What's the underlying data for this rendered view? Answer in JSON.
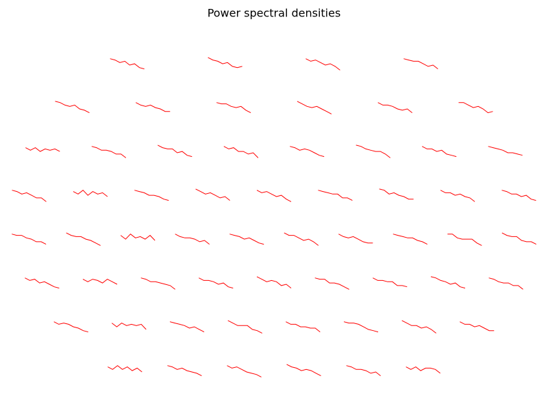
{
  "chart_data": {
    "type": "psd-topo",
    "title": "Power spectral densities",
    "color": "#ff0000",
    "ylim": [
      -12,
      2
    ],
    "series": [
      {
        "values": [
          0,
          -1,
          -3,
          -2,
          -5,
          -4,
          -7,
          -8
        ]
      },
      {
        "values": [
          1,
          -1,
          -2,
          -4,
          -3,
          -6,
          -7,
          -6
        ]
      },
      {
        "values": [
          0,
          -2,
          -1,
          -3,
          -5,
          -4,
          -6,
          -9
        ]
      },
      {
        "values": [
          0,
          -1,
          -2,
          -2,
          -4,
          -6,
          -5,
          -8
        ]
      },
      {
        "values": [
          1,
          0,
          -2,
          -3,
          -2,
          -5,
          -6,
          -8
        ]
      },
      {
        "values": [
          0,
          -2,
          -3,
          -2,
          -4,
          -5,
          -7,
          -7
        ]
      },
      {
        "values": [
          0,
          -1,
          -1,
          -3,
          -4,
          -3,
          -6,
          -8
        ]
      },
      {
        "values": [
          1,
          -1,
          -3,
          -4,
          -3,
          -5,
          -7,
          -9
        ]
      },
      {
        "values": [
          0,
          -2,
          -2,
          -3,
          -5,
          -6,
          -5,
          -8
        ]
      },
      {
        "values": [
          0,
          0,
          -2,
          -4,
          -3,
          -5,
          -8,
          -7
        ]
      },
      {
        "values": [
          -1,
          -3,
          -1,
          -4,
          -2,
          -3,
          -2,
          -4
        ]
      },
      {
        "values": [
          0,
          -1,
          -3,
          -3,
          -4,
          -6,
          -6,
          -9
        ]
      },
      {
        "values": [
          1,
          -1,
          -2,
          -2,
          -5,
          -4,
          -7,
          -8
        ]
      },
      {
        "values": [
          0,
          -2,
          -1,
          -4,
          -4,
          -6,
          -5,
          -9
        ]
      },
      {
        "values": [
          0,
          -1,
          -3,
          -2,
          -3,
          -5,
          -7,
          -8
        ]
      },
      {
        "values": [
          1,
          0,
          -2,
          -3,
          -4,
          -4,
          -6,
          -9
        ]
      },
      {
        "values": [
          0,
          -2,
          -2,
          -4,
          -3,
          -6,
          -7,
          -8
        ]
      },
      {
        "values": [
          0,
          -1,
          -2,
          -3,
          -5,
          -5,
          -6,
          -7
        ]
      },
      {
        "values": [
          0,
          -1,
          -3,
          -2,
          -4,
          -6,
          -6,
          -9
        ]
      },
      {
        "values": [
          -1,
          -3,
          0,
          -4,
          -1,
          -3,
          -2,
          -5
        ]
      },
      {
        "values": [
          0,
          -1,
          -2,
          -4,
          -4,
          -5,
          -7,
          -8
        ]
      },
      {
        "values": [
          1,
          -1,
          -3,
          -2,
          -4,
          -6,
          -5,
          -8
        ]
      },
      {
        "values": [
          0,
          -2,
          -1,
          -3,
          -5,
          -4,
          -7,
          -9
        ]
      },
      {
        "values": [
          0,
          -1,
          -2,
          -3,
          -3,
          -6,
          -6,
          -8
        ]
      },
      {
        "values": [
          1,
          0,
          -3,
          -2,
          -4,
          -5,
          -7,
          -7
        ]
      },
      {
        "values": [
          0,
          -2,
          -2,
          -4,
          -3,
          -5,
          -6,
          -9
        ]
      },
      {
        "values": [
          0,
          -1,
          -3,
          -3,
          -5,
          -4,
          -7,
          -8
        ]
      },
      {
        "values": [
          0,
          -1,
          -1,
          -3,
          -4,
          -6,
          -6,
          -8
        ]
      },
      {
        "values": [
          1,
          -1,
          -2,
          -2,
          -4,
          -5,
          -7,
          -9
        ]
      },
      {
        "values": [
          -1,
          -4,
          0,
          -3,
          -2,
          -4,
          -1,
          -5
        ]
      },
      {
        "values": [
          0,
          -2,
          -3,
          -3,
          -4,
          -6,
          -5,
          -8
        ]
      },
      {
        "values": [
          0,
          -1,
          -2,
          -4,
          -3,
          -5,
          -7,
          -8
        ]
      },
      {
        "values": [
          1,
          -1,
          -1,
          -3,
          -5,
          -4,
          -6,
          -9
        ]
      },
      {
        "values": [
          0,
          -2,
          -3,
          -2,
          -4,
          -6,
          -7,
          -7
        ]
      },
      {
        "values": [
          0,
          -1,
          -2,
          -3,
          -3,
          -5,
          -6,
          -8
        ]
      },
      {
        "values": [
          0,
          0,
          -3,
          -4,
          -4,
          -4,
          -7,
          -9
        ]
      },
      {
        "values": [
          1,
          -1,
          -2,
          -2,
          -5,
          -6,
          -6,
          -8
        ]
      },
      {
        "values": [
          0,
          -2,
          -1,
          -4,
          -3,
          -5,
          -7,
          -8
        ]
      },
      {
        "values": [
          -1,
          -3,
          -1,
          -2,
          -4,
          -1,
          -3,
          -5
        ]
      },
      {
        "values": [
          0,
          -1,
          -3,
          -3,
          -4,
          -5,
          -6,
          -9
        ]
      },
      {
        "values": [
          0,
          -2,
          -2,
          -3,
          -5,
          -4,
          -7,
          -8
        ]
      },
      {
        "values": [
          1,
          -1,
          -3,
          -2,
          -3,
          -6,
          -5,
          -8
        ]
      },
      {
        "values": [
          0,
          -1,
          -1,
          -4,
          -4,
          -5,
          -7,
          -9
        ]
      },
      {
        "values": [
          0,
          -2,
          -2,
          -3,
          -3,
          -6,
          -6,
          -7
        ]
      },
      {
        "values": [
          1,
          0,
          -2,
          -3,
          -5,
          -4,
          -7,
          -8
        ]
      },
      {
        "values": [
          0,
          -1,
          -3,
          -4,
          -4,
          -6,
          -6,
          -9
        ]
      },
      {
        "values": [
          0,
          -2,
          -1,
          -2,
          -4,
          -5,
          -7,
          -8
        ]
      },
      {
        "values": [
          -1,
          -4,
          -1,
          -3,
          -2,
          -3,
          -2,
          -6
        ]
      },
      {
        "values": [
          0,
          -1,
          -2,
          -3,
          -5,
          -4,
          -6,
          -8
        ]
      },
      {
        "values": [
          1,
          -1,
          -3,
          -3,
          -3,
          -6,
          -7,
          -9
        ]
      },
      {
        "values": [
          0,
          -2,
          -2,
          -4,
          -4,
          -5,
          -5,
          -8
        ]
      },
      {
        "values": [
          0,
          -1,
          -1,
          -2,
          -4,
          -6,
          -7,
          -8
        ]
      },
      {
        "values": [
          1,
          -1,
          -3,
          -3,
          -5,
          -4,
          -6,
          -9
        ]
      },
      {
        "values": [
          0,
          -2,
          -2,
          -4,
          -3,
          -5,
          -7,
          -7
        ]
      },
      {
        "values": [
          -1,
          -3,
          0,
          -3,
          -1,
          -4,
          -2,
          -5
        ]
      },
      {
        "values": [
          0,
          -1,
          -3,
          -2,
          -4,
          -5,
          -6,
          -8
        ]
      },
      {
        "values": [
          0,
          -2,
          -1,
          -3,
          -5,
          -6,
          -7,
          -9
        ]
      },
      {
        "values": [
          1,
          -1,
          -2,
          -4,
          -3,
          -4,
          -6,
          -8
        ]
      },
      {
        "values": [
          0,
          -1,
          -3,
          -3,
          -4,
          -6,
          -5,
          -8
        ]
      },
      {
        "values": [
          -1,
          -3,
          -1,
          -4,
          -2,
          -2,
          -3,
          -6
        ]
      }
    ]
  }
}
